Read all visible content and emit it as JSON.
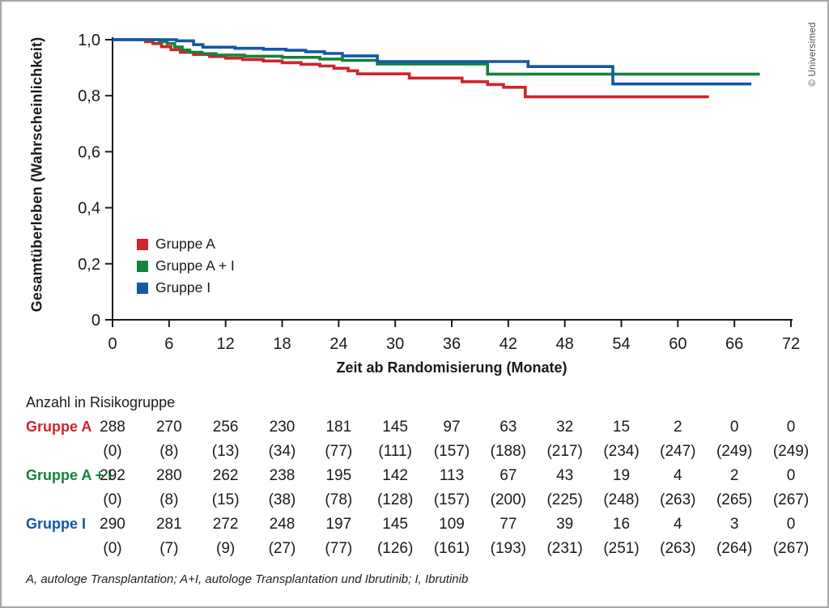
{
  "figure": {
    "copyright": "© Universimed",
    "footnote": "A, autologe Transplantation; A+I, autologe Transplantation und Ibrutinib; I, Ibrutinib"
  },
  "chart_data": {
    "type": "line",
    "subtype": "kaplan-meier-step",
    "title": "",
    "xlabel": "Zeit ab Randomisierung (Monate)",
    "ylabel": "Gesamtüberleben (Wahrscheinlichkeit)",
    "xlim": [
      0,
      72
    ],
    "ylim": [
      0,
      1.0
    ],
    "grid": false,
    "legend_position": "inside-lower-left",
    "x_ticks": [
      0,
      6,
      12,
      18,
      24,
      30,
      36,
      42,
      48,
      54,
      60,
      66,
      72
    ],
    "x_tick_labels": [
      "0",
      "6",
      "12",
      "18",
      "24",
      "30",
      "36",
      "42",
      "48",
      "54",
      "60",
      "66",
      "72"
    ],
    "y_ticks": [
      1.0,
      0.8,
      0.6,
      0.4,
      0.2,
      0
    ],
    "y_tick_labels": [
      "1,0",
      "0,8",
      "0,6",
      "0,4",
      "0,2",
      "0"
    ],
    "series": [
      {
        "name": "Gruppe A",
        "color": "#d0232b",
        "end_month": 63.3,
        "points": [
          [
            0,
            1.0
          ],
          [
            3.5,
            0.993
          ],
          [
            4.3,
            0.986
          ],
          [
            5.2,
            0.975
          ],
          [
            6.2,
            0.964
          ],
          [
            7.2,
            0.955
          ],
          [
            8.6,
            0.947
          ],
          [
            10.3,
            0.94
          ],
          [
            12,
            0.934
          ],
          [
            13.8,
            0.929
          ],
          [
            16,
            0.924
          ],
          [
            18,
            0.918
          ],
          [
            20,
            0.912
          ],
          [
            22,
            0.906
          ],
          [
            23.5,
            0.898
          ],
          [
            25,
            0.889
          ],
          [
            26,
            0.878
          ],
          [
            31.5,
            0.863
          ],
          [
            37.1,
            0.85
          ],
          [
            39.8,
            0.84
          ],
          [
            41.5,
            0.83
          ],
          [
            43.8,
            0.796
          ]
        ]
      },
      {
        "name": "Gruppe A + I",
        "color": "#17813e",
        "end_month": 68.7,
        "points": [
          [
            0,
            1.0
          ],
          [
            5.0,
            0.993
          ],
          [
            5.8,
            0.986
          ],
          [
            6.6,
            0.974
          ],
          [
            7.4,
            0.963
          ],
          [
            8.2,
            0.955
          ],
          [
            9.5,
            0.95
          ],
          [
            11,
            0.945
          ],
          [
            14,
            0.941
          ],
          [
            18,
            0.937
          ],
          [
            22,
            0.931
          ],
          [
            24.4,
            0.926
          ],
          [
            28.1,
            0.913
          ],
          [
            39.8,
            0.877
          ]
        ]
      },
      {
        "name": "Gruppe I",
        "color": "#1358a7",
        "end_month": 67.8,
        "points": [
          [
            0,
            1.0
          ],
          [
            6.8,
            0.996
          ],
          [
            8.6,
            0.982
          ],
          [
            9.6,
            0.973
          ],
          [
            13,
            0.969
          ],
          [
            16,
            0.966
          ],
          [
            18.4,
            0.962
          ],
          [
            20.5,
            0.957
          ],
          [
            22.5,
            0.951
          ],
          [
            24.4,
            0.942
          ],
          [
            28.1,
            0.922
          ],
          [
            44.1,
            0.904
          ],
          [
            53.1,
            0.842
          ]
        ]
      }
    ],
    "risk_table": {
      "title": "Anzahl in Risikogruppe",
      "months": [
        0,
        6,
        12,
        18,
        24,
        30,
        36,
        42,
        48,
        54,
        60,
        66,
        72
      ],
      "rows": [
        {
          "label": "Gruppe A",
          "color": "#d0232b",
          "counts": [
            "288",
            "270",
            "256",
            "230",
            "181",
            "145",
            "97",
            "63",
            "32",
            "15",
            "2",
            "0",
            "0"
          ],
          "censored": [
            "(0)",
            "(8)",
            "(13)",
            "(34)",
            "(77)",
            "(111)",
            "(157)",
            "(188)",
            "(217)",
            "(234)",
            "(247)",
            "(249)",
            "(249)"
          ]
        },
        {
          "label": "Gruppe A + I",
          "color": "#17813e",
          "counts": [
            "292",
            "280",
            "262",
            "238",
            "195",
            "142",
            "113",
            "67",
            "43",
            "19",
            "4",
            "2",
            "0"
          ],
          "censored": [
            "(0)",
            "(8)",
            "(15)",
            "(38)",
            "(78)",
            "(128)",
            "(157)",
            "(200)",
            "(225)",
            "(248)",
            "(263)",
            "(265)",
            "(267)"
          ]
        },
        {
          "label": "Gruppe I",
          "color": "#1358a7",
          "counts": [
            "290",
            "281",
            "272",
            "248",
            "197",
            "145",
            "109",
            "77",
            "39",
            "16",
            "4",
            "3",
            "0"
          ],
          "censored": [
            "(0)",
            "(7)",
            "(9)",
            "(27)",
            "(77)",
            "(126)",
            "(161)",
            "(193)",
            "(231)",
            "(251)",
            "(263)",
            "(264)",
            "(267)"
          ]
        }
      ]
    }
  }
}
